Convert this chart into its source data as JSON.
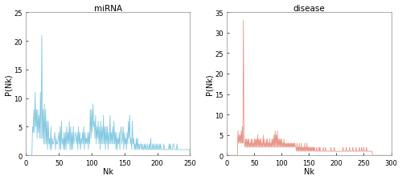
{
  "mirna_title": "miRNA",
  "disease_title": "disease",
  "xlabel": "Nk",
  "ylabel": "P(Nk)",
  "mirna_xlim": [
    0,
    250
  ],
  "mirna_ylim": [
    0,
    25
  ],
  "disease_xlim": [
    0,
    300
  ],
  "disease_ylim": [
    0,
    35
  ],
  "mirna_color": "#82C8E0",
  "disease_color": "#E8968A",
  "mirna_yticks": [
    0,
    5,
    10,
    15,
    20,
    25
  ],
  "disease_yticks": [
    0,
    5,
    10,
    15,
    20,
    25,
    30,
    35
  ],
  "mirna_xticks": [
    0,
    50,
    100,
    150,
    200,
    250
  ],
  "disease_xticks": [
    0,
    50,
    100,
    150,
    200,
    250,
    300
  ]
}
